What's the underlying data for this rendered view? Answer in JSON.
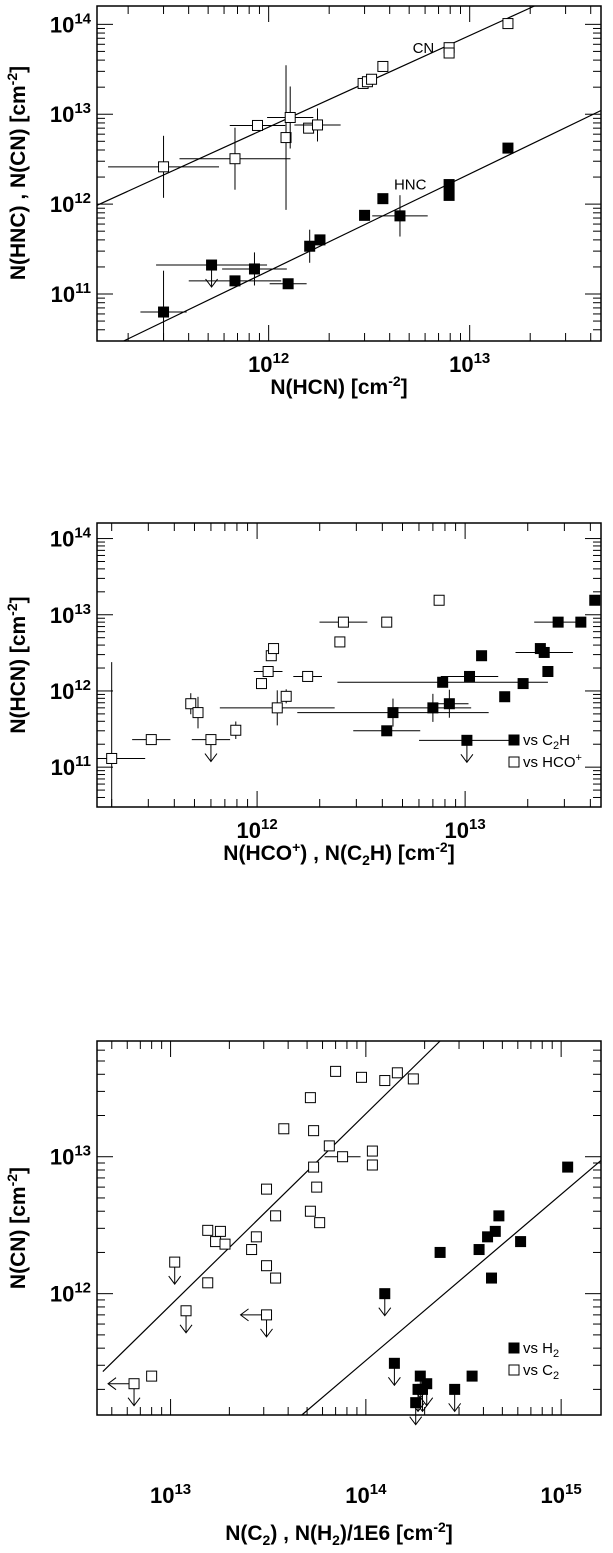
{
  "chart_data": [
    {
      "type": "scatter",
      "x_scale": "log",
      "y_scale": "log",
      "xlabel": "N(HCN) [cm",
      "xlabel_sup": "-2",
      "xlabel_end": "]",
      "ylabel": "N(HNC) , N(CN) [cm",
      "ylabel_sup": "-2",
      "ylabel_end": "]",
      "xlim": [
        140000000000.0,
        45000000000000.0
      ],
      "ylim": [
        30000000000.0,
        160000000000000.0
      ],
      "x_ticks": [
        {
          "base": "10",
          "exp": "12",
          "value": 1000000000000.0
        },
        {
          "base": "10",
          "exp": "13",
          "value": 10000000000000.0
        }
      ],
      "y_ticks": [
        {
          "base": "10",
          "exp": "11",
          "value": 100000000000.0
        },
        {
          "base": "10",
          "exp": "12",
          "value": 1000000000000.0
        },
        {
          "base": "10",
          "exp": "13",
          "value": 10000000000000.0
        },
        {
          "base": "10",
          "exp": "14",
          "value": 100000000000000.0
        }
      ],
      "annotations": [
        {
          "text": "CN",
          "x": 5200000000000.0,
          "y": 48000000000000.0
        },
        {
          "text": "HNC",
          "x": 4200000000000.0,
          "y": 1450000000000.0
        }
      ],
      "series": [
        {
          "name": "CN",
          "marker": "open-square",
          "points": [
            {
              "x": 300000000000.0,
              "y": 2600000000000.0,
              "xerr": 0.12,
              "yerr": 0.15
            },
            {
              "x": 680000000000.0,
              "y": 3200000000000.0,
              "xerr": 0.12,
              "yerr": 0.15
            },
            {
              "x": 880000000000.0,
              "y": 7500000000000.0,
              "xerr": 0.06
            },
            {
              "x": 1220000000000.0,
              "y": 5500000000000.0,
              "yerr": 0.35
            },
            {
              "x": 1280000000000.0,
              "y": 9200000000000.0,
              "xerr": 0.05,
              "yerr": 0.15
            },
            {
              "x": 1580000000000.0,
              "y": 7000000000000.0
            },
            {
              "x": 1750000000000.0,
              "y": 7600000000000.0,
              "xerr": 0.05,
              "yerr": 0.08
            },
            {
              "x": 2950000000000.0,
              "y": 22000000000000.0
            },
            {
              "x": 3100000000000.0,
              "y": 23000000000000.0
            },
            {
              "x": 3250000000000.0,
              "y": 24500000000000.0
            },
            {
              "x": 3700000000000.0,
              "y": 34000000000000.0
            },
            {
              "x": 7900000000000.0,
              "y": 55000000000000.0
            },
            {
              "x": 7900000000000.0,
              "y": 48000000000000.0
            },
            {
              "x": 15500000000000.0,
              "y": 102000000000000.0
            }
          ]
        },
        {
          "name": "HNC",
          "marker": "filled-square",
          "points": [
            {
              "x": 300000000000.0,
              "y": 63000000000.0,
              "xerr": 0.05,
              "yerr": 0.2
            },
            {
              "x": 520000000000.0,
              "y": 210000000000.0,
              "xerr": 0.12,
              "upper_limit": true
            },
            {
              "x": 680000000000.0,
              "y": 140000000000.0,
              "xerr": 0.1
            },
            {
              "x": 850000000000.0,
              "y": 190000000000.0,
              "xerr": 0.07,
              "yerr": 0.08
            },
            {
              "x": 1250000000000.0,
              "y": 130000000000.0,
              "xerr": 0.04
            },
            {
              "x": 1600000000000.0,
              "y": 340000000000.0,
              "yerr": 0.08
            },
            {
              "x": 1800000000000.0,
              "y": 400000000000.0
            },
            {
              "x": 3000000000000.0,
              "y": 750000000000.0
            },
            {
              "x": 3700000000000.0,
              "y": 1150000000000.0
            },
            {
              "x": 4500000000000.0,
              "y": 740000000000.0,
              "xerr": 0.06,
              "yerr": 0.1
            },
            {
              "x": 7900000000000.0,
              "y": 1650000000000.0
            },
            {
              "x": 7900000000000.0,
              "y": 1250000000000.0
            },
            {
              "x": 15500000000000.0,
              "y": 4200000000000.0
            }
          ]
        }
      ],
      "lines": [
        {
          "from": [
            140000000000.0,
            970000000000.0
          ],
          "to": [
            21000000000000.0,
            160000000000000.0
          ]
        },
        {
          "from": [
            190000000000.0,
            30000000000.0
          ],
          "to": [
            45000000000000.0,
            11000000000000.0
          ]
        }
      ]
    },
    {
      "type": "scatter",
      "x_scale": "log",
      "y_scale": "log",
      "xlabel": "N(HCO",
      "xlabel_sup": "+",
      "xlabel_mid": ") , N(C",
      "xlabel_sub": "2",
      "xlabel_mid2": "H) [cm",
      "xlabel_sup2": "-2",
      "xlabel_end": "]",
      "ylabel": "N(HCN) [cm",
      "ylabel_sup": "-2",
      "ylabel_end": "]",
      "xlim": [
        170000000000.0,
        45000000000000.0
      ],
      "ylim": [
        30000000000.0,
        160000000000000.0
      ],
      "x_ticks": [
        {
          "base": "10",
          "exp": "12",
          "value": 1000000000000.0
        },
        {
          "base": "10",
          "exp": "13",
          "value": 10000000000000.0
        }
      ],
      "y_ticks": [
        {
          "base": "10",
          "exp": "11",
          "value": 100000000000.0
        },
        {
          "base": "10",
          "exp": "12",
          "value": 1000000000000.0
        },
        {
          "base": "10",
          "exp": "13",
          "value": 10000000000000.0
        },
        {
          "base": "10",
          "exp": "14",
          "value": 100000000000000.0
        }
      ],
      "legend": [
        {
          "marker": "filled-square",
          "text": "vs C",
          "sub": "2",
          "tail": "H"
        },
        {
          "marker": "open-square",
          "text": "vs HCO",
          "sup": "+"
        }
      ],
      "legend_position": "bottom-right",
      "series": [
        {
          "name": "vs C2H",
          "marker": "filled-square",
          "points": [
            {
              "x": 4200000000000.0,
              "y": 300000000000.0,
              "xerr": 0.07
            },
            {
              "x": 4500000000000.0,
              "y": 520000000000.0,
              "xerr": 0.2,
              "yerr": 0.08
            },
            {
              "x": 7000000000000.0,
              "y": 600000000000.0,
              "xerr": 0.08,
              "yerr": 0.08
            },
            {
              "x": 7800000000000.0,
              "y": 1300000000000.0,
              "xerr": 0.22
            },
            {
              "x": 8400000000000.0,
              "y": 680000000000.0,
              "xerr": 0.04,
              "yerr": 0.08
            },
            {
              "x": 10200000000000.0,
              "y": 225000000000.0,
              "xerr": 0.1,
              "upper_limit": true
            },
            {
              "x": 10500000000000.0,
              "y": 1550000000000.0,
              "xerr": 0.06
            },
            {
              "x": 12000000000000.0,
              "y": 2900000000000.0
            },
            {
              "x": 15500000000000.0,
              "y": 840000000000.0
            },
            {
              "x": 19000000000000.0,
              "y": 1250000000000.0
            },
            {
              "x": 23000000000000.0,
              "y": 3600000000000.0
            },
            {
              "x": 24000000000000.0,
              "y": 3200000000000.0,
              "xerr": 0.06
            },
            {
              "x": 25000000000000.0,
              "y": 1800000000000.0
            },
            {
              "x": 28000000000000.0,
              "y": 8000000000000.0,
              "xerr": 0.05
            },
            {
              "x": 36000000000000.0,
              "y": 8000000000000.0
            },
            {
              "x": 42000000000000.0,
              "y": 15500000000000.0
            }
          ]
        },
        {
          "name": "vs HCO+",
          "marker": "open-square",
          "points": [
            {
              "x": 200000000000.0,
              "y": 130000000000.0,
              "xerr": 0.07,
              "yerr": 0.55
            },
            {
              "x": 310000000000.0,
              "y": 230000000000.0,
              "xerr": 0.04
            },
            {
              "x": 480000000000.0,
              "y": 680000000000.0,
              "yerr": 0.06
            },
            {
              "x": 520000000000.0,
              "y": 520000000000.0,
              "yerr": 0.09
            },
            {
              "x": 600000000000.0,
              "y": 230000000000.0,
              "xerr": 0.04,
              "upper_limit": true
            },
            {
              "x": 790000000000.0,
              "y": 305000000000.0,
              "yerr": 0.05
            },
            {
              "x": 1050000000000.0,
              "y": 1250000000000.0
            },
            {
              "x": 1130000000000.0,
              "y": 1800000000000.0,
              "xerr": 0.03
            },
            {
              "x": 1170000000000.0,
              "y": 2900000000000.0
            },
            {
              "x": 1200000000000.0,
              "y": 3600000000000.0
            },
            {
              "x": 1250000000000.0,
              "y": 600000000000.0,
              "xerr": 0.12,
              "yerr": 0.1
            },
            {
              "x": 1380000000000.0,
              "y": 850000000000.0,
              "yerr": 0.04
            },
            {
              "x": 1750000000000.0,
              "y": 1550000000000.0,
              "xerr": 0.03
            },
            {
              "x": 2500000000000.0,
              "y": 4400000000000.0
            },
            {
              "x": 2600000000000.0,
              "y": 8000000000000.0,
              "xerr": 0.05
            },
            {
              "x": 4200000000000.0,
              "y": 8000000000000.0
            },
            {
              "x": 7500000000000.0,
              "y": 15500000000000.0
            }
          ]
        }
      ]
    },
    {
      "type": "scatter",
      "x_scale": "log",
      "y_scale": "log",
      "xlabel": "N(C",
      "xlabel_sub": "2",
      "xlabel_mid": ") , N(H",
      "xlabel_sub2": "2",
      "xlabel_end": ")/1E6 [cm",
      "xlabel_sup": "-2",
      "xlabel_end2": "]",
      "ylabel": "N(CN) [cm",
      "ylabel_sup": "-2",
      "ylabel_end": "]",
      "xlim": [
        4200000000000.0,
        1600000000000000.0
      ],
      "ylim": [
        130000000000.0,
        70000000000000.0
      ],
      "x_ticks": [
        {
          "base": "10",
          "exp": "13",
          "value": 10000000000000.0
        },
        {
          "base": "10",
          "exp": "14",
          "value": 100000000000000.0
        },
        {
          "base": "10",
          "exp": "15",
          "value": 1000000000000000.0
        }
      ],
      "y_ticks": [
        {
          "base": "10",
          "exp": "12",
          "value": 1000000000000.0
        },
        {
          "base": "10",
          "exp": "13",
          "value": 10000000000000.0
        }
      ],
      "legend": [
        {
          "marker": "filled-square",
          "text": "vs H",
          "sub": "2"
        },
        {
          "marker": "open-square",
          "text": "vs C",
          "sub": "2"
        }
      ],
      "legend_position": "bottom-right",
      "series": [
        {
          "name": "vs H2",
          "marker": "filled-square",
          "points": [
            {
              "x": 125000000000000.0,
              "y": 1000000000000.0,
              "upper_limit": true
            },
            {
              "x": 140000000000000.0,
              "y": 310000000000.0,
              "upper_limit": true
            },
            {
              "x": 180000000000000.0,
              "y": 160000000000.0,
              "upper_limit": true
            },
            {
              "x": 185000000000000.0,
              "y": 200000000000.0,
              "upper_limit": true
            },
            {
              "x": 190000000000000.0,
              "y": 250000000000.0,
              "upper_limit": true
            },
            {
              "x": 195000000000000.0,
              "y": 200000000000.0,
              "upper_limit": true
            },
            {
              "x": 205000000000000.0,
              "y": 220000000000.0,
              "upper_limit": true
            },
            {
              "x": 240000000000000.0,
              "y": 2000000000000.0
            },
            {
              "x": 285000000000000.0,
              "y": 200000000000.0,
              "upper_limit": true
            },
            {
              "x": 350000000000000.0,
              "y": 250000000000.0
            },
            {
              "x": 380000000000000.0,
              "y": 2100000000000.0
            },
            {
              "x": 420000000000000.0,
              "y": 2600000000000.0
            },
            {
              "x": 440000000000000.0,
              "y": 1300000000000.0
            },
            {
              "x": 460000000000000.0,
              "y": 2850000000000.0
            },
            {
              "x": 480000000000000.0,
              "y": 3700000000000.0
            },
            {
              "x": 620000000000000.0,
              "y": 2400000000000.0
            },
            {
              "x": 1080000000000000.0,
              "y": 8400000000000.0
            }
          ]
        },
        {
          "name": "vs C2",
          "marker": "open-square",
          "points": [
            {
              "x": 6500000000000.0,
              "y": 220000000000.0,
              "left_limit": true,
              "upper_limit": true
            },
            {
              "x": 8000000000000.0,
              "y": 250000000000.0
            },
            {
              "x": 10500000000000.0,
              "y": 1700000000000.0,
              "upper_limit": true
            },
            {
              "x": 12000000000000.0,
              "y": 750000000000.0,
              "upper_limit": true
            },
            {
              "x": 15500000000000.0,
              "y": 1200000000000.0
            },
            {
              "x": 15500000000000.0,
              "y": 2900000000000.0
            },
            {
              "x": 17000000000000.0,
              "y": 2400000000000.0
            },
            {
              "x": 18000000000000.0,
              "y": 2850000000000.0
            },
            {
              "x": 19000000000000.0,
              "y": 2300000000000.0
            },
            {
              "x": 26000000000000.0,
              "y": 2100000000000.0
            },
            {
              "x": 27500000000000.0,
              "y": 2600000000000.0
            },
            {
              "x": 31000000000000.0,
              "y": 5800000000000.0
            },
            {
              "x": 31000000000000.0,
              "y": 1600000000000.0
            },
            {
              "x": 31000000000000.0,
              "y": 700000000000.0,
              "left_limit": true,
              "upper_limit": true
            },
            {
              "x": 34500000000000.0,
              "y": 1300000000000.0
            },
            {
              "x": 34500000000000.0,
              "y": 3700000000000.0
            },
            {
              "x": 38000000000000.0,
              "y": 16000000000000.0
            },
            {
              "x": 52000000000000.0,
              "y": 4000000000000.0
            },
            {
              "x": 52000000000000.0,
              "y": 27000000000000.0
            },
            {
              "x": 54000000000000.0,
              "y": 15500000000000.0
            },
            {
              "x": 54000000000000.0,
              "y": 8400000000000.0
            },
            {
              "x": 56000000000000.0,
              "y": 6000000000000.0
            },
            {
              "x": 58000000000000.0,
              "y": 3300000000000.0
            },
            {
              "x": 65000000000000.0,
              "y": 12000000000000.0
            },
            {
              "x": 70000000000000.0,
              "y": 42000000000000.0
            },
            {
              "x": 76000000000000.0,
              "y": 10000000000000.0,
              "xerr": 0.04
            },
            {
              "x": 95000000000000.0,
              "y": 38000000000000.0
            },
            {
              "x": 108000000000000.0,
              "y": 11000000000000.0
            },
            {
              "x": 108000000000000.0,
              "y": 8700000000000.0
            },
            {
              "x": 125000000000000.0,
              "y": 36000000000000.0
            },
            {
              "x": 145000000000000.0,
              "y": 41000000000000.0
            },
            {
              "x": 175000000000000.0,
              "y": 37000000000000.0
            }
          ]
        }
      ],
      "lines": [
        {
          "from": [
            4500000000000.0,
            270000000000.0
          ],
          "to": [
            240000000000000.0,
            70000000000000.0
          ]
        },
        {
          "from": [
            47000000000000.0,
            130000000000.0
          ],
          "to": [
            1600000000000000.0,
            9400000000000.0
          ]
        }
      ]
    }
  ]
}
